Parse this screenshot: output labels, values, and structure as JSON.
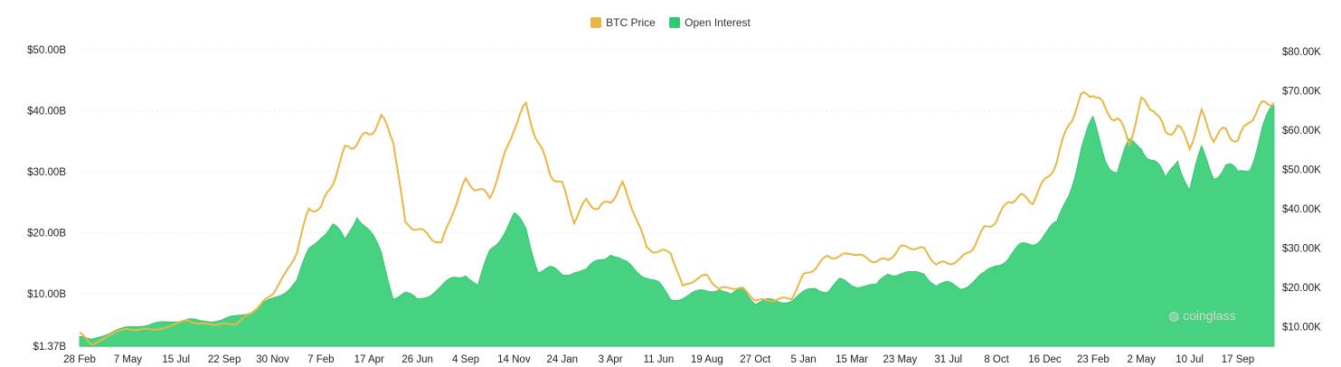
{
  "chart_data": {
    "type": "line+area",
    "legend": [
      {
        "name": "BTC Price",
        "color": "#ebb644"
      },
      {
        "name": "Open Interest",
        "color": "#2ecc71"
      }
    ],
    "y_left": {
      "ticks": [
        "$1.37B",
        "$10.00B",
        "$20.00B",
        "$30.00B",
        "$40.00B",
        "$50.00B"
      ],
      "tick_values": [
        1.37,
        10,
        20,
        30,
        40,
        50
      ],
      "ylim": [
        1.37,
        50
      ]
    },
    "y_right": {
      "ticks": [
        "$10.00K",
        "$20.00K",
        "$30.00K",
        "$40.00K",
        "$50.00K",
        "$60.00K",
        "$70.00K",
        "$80.00K"
      ],
      "tick_values": [
        10000,
        20000,
        30000,
        40000,
        50000,
        60000,
        70000,
        80000
      ],
      "ylim": [
        5000,
        80000
      ]
    },
    "x_ticks": [
      "28 Feb",
      "7 May",
      "15 Jul",
      "22 Sep",
      "30 Nov",
      "7 Feb",
      "17 Apr",
      "26 Jun",
      "4 Sep",
      "14 Nov",
      "24 Jan",
      "3 Apr",
      "11 Jun",
      "19 Aug",
      "27 Oct",
      "5 Jan",
      "15 Mar",
      "23 May",
      "31 Jul",
      "8 Oct",
      "16 Dec",
      "23 Feb",
      "2 May",
      "10 Jul",
      "17 Sep"
    ],
    "x_tick_index": [
      0,
      4,
      8,
      12,
      16,
      20,
      24,
      28,
      32,
      36,
      40,
      44,
      48,
      52,
      56,
      60,
      64,
      68,
      72,
      76,
      80,
      84,
      88,
      92,
      96
    ],
    "grid": true,
    "legend_position": "top-center",
    "series": [
      {
        "name": "BTC Price",
        "axis": "right",
        "type": "line",
        "values": [
          8600,
          5400,
          6800,
          8900,
          9300,
          9200,
          9400,
          9300,
          11000,
          11500,
          10700,
          10600,
          10600,
          10800,
          13000,
          15500,
          18500,
          23000,
          29000,
          40000,
          40000,
          47000,
          55000,
          57000,
          59000,
          63000,
          58000,
          36000,
          35000,
          33000,
          31000,
          40000,
          47000,
          45000,
          43000,
          51000,
          61000,
          66000,
          57000,
          49000,
          46000,
          37000,
          42000,
          40000,
          42000,
          46000,
          39000,
          30000,
          29000,
          29000,
          20000,
          22000,
          23000,
          19500,
          20000,
          19500,
          16800,
          16600,
          17000,
          17200,
          23000,
          25000,
          28000,
          27600,
          29000,
          27500,
          26700,
          27000,
          30000,
          30300,
          29500,
          26000,
          26100,
          27000,
          30000,
          35000,
          37000,
          42000,
          43000,
          42000,
          47000,
          52000,
          62000,
          68000,
          70000,
          65000,
          63000,
          57000,
          67000,
          66000,
          59000,
          61000,
          56000,
          64000,
          58000,
          60000,
          57000,
          63000,
          66000,
          68000
        ]
      },
      {
        "name": "Open Interest",
        "axis": "left",
        "type": "area",
        "values": [
          3.0,
          2.4,
          3.2,
          4.0,
          4.4,
          4.8,
          5.0,
          5.2,
          5.6,
          5.8,
          5.4,
          5.6,
          5.8,
          6.2,
          7.0,
          8.0,
          9.0,
          10.5,
          12.0,
          17.0,
          20.0,
          21.0,
          18.5,
          23.5,
          20.0,
          16.5,
          9.5,
          10.0,
          9.0,
          10.0,
          11.0,
          12.5,
          13.5,
          11.0,
          17.0,
          20.0,
          22.5,
          20.5,
          14.0,
          14.0,
          13.0,
          14.0,
          13.5,
          15.5,
          17.0,
          15.0,
          14.0,
          13.0,
          11.5,
          9.0,
          9.5,
          10.0,
          10.5,
          11.0,
          9.5,
          11.0,
          8.5,
          8.8,
          8.7,
          9.0,
          10.0,
          11.0,
          10.5,
          12.0,
          11.5,
          11.5,
          11.0,
          13.5,
          13.5,
          13.0,
          13.5,
          11.5,
          11.5,
          11.0,
          12.0,
          13.0,
          15.0,
          16.0,
          17.5,
          18.5,
          20.0,
          21.0,
          27.0,
          34.0,
          37.5,
          33.0,
          30.0,
          34.0,
          35.0,
          32.0,
          28.0,
          33.0,
          27.0,
          33.0,
          30.0,
          31.0,
          29.0,
          31.5,
          37.0,
          39.5
        ]
      }
    ]
  },
  "watermark": {
    "text": "coinglass"
  }
}
